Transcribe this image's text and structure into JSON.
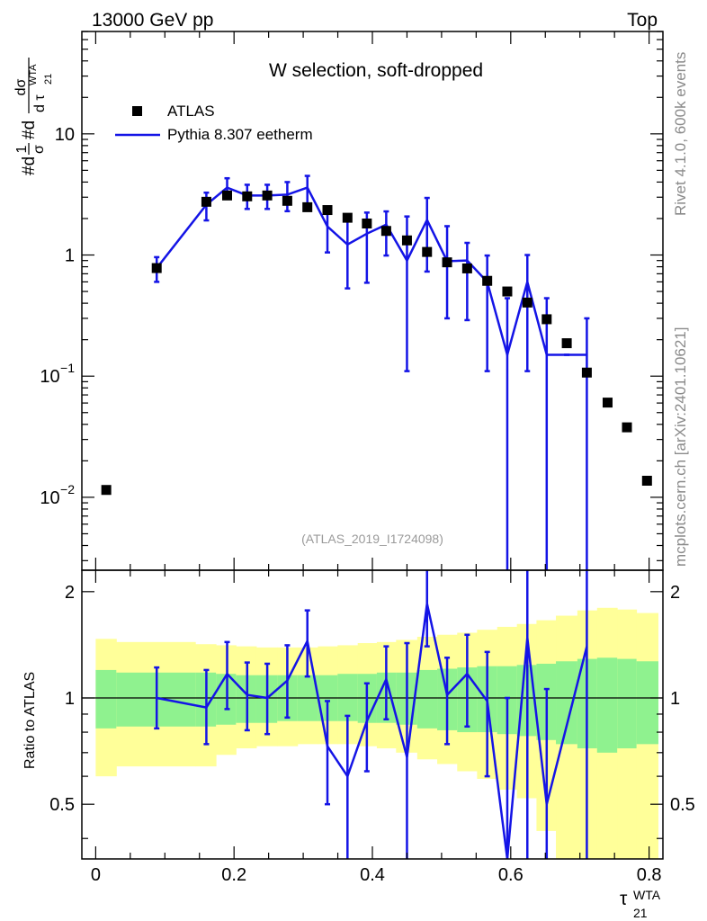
{
  "header": {
    "left": "13000 GeV pp",
    "right": "Top"
  },
  "side_labels": {
    "rivet": "Rivet 4.1.0,  600k events",
    "mcplots": "mcplots.cern.ch [arXiv:2401.10621]"
  },
  "colors": {
    "mc": "#1414e6",
    "data": "#000000",
    "band_inner": "#8ff28f",
    "band_outer": "#ffff99"
  },
  "chart_data": [
    {
      "type": "scatter",
      "panel": "main",
      "title": "W selection, soft-dropped",
      "reference": "(ATLAS_2019_I1724098)",
      "ylabel": {
        "main_part": "#d",
        "frac1_num": "1",
        "frac1_den": "σ",
        "frac2_num": "dσ",
        "frac2_den": "d τ",
        "super": "WTA",
        "sub": "21"
      },
      "yscale": "log",
      "ylim": [
        0.0025,
        70
      ],
      "xlim": [
        -0.02,
        0.82
      ],
      "yticks": [
        {
          "value": 10,
          "base": "10",
          "exp": ""
        },
        {
          "value": 1,
          "base": "1",
          "exp": ""
        },
        {
          "value": 0.1,
          "base": "10",
          "exp": "−1"
        },
        {
          "value": 0.01,
          "base": "10",
          "exp": "−2"
        }
      ],
      "legend": {
        "position": "top-left",
        "entries": [
          {
            "label": "ATLAS",
            "style": "marker"
          },
          {
            "label": "Pythia 8.307 eetherm",
            "style": "line"
          }
        ]
      },
      "series": [
        {
          "name": "ATLAS",
          "x": [
            0.0153,
            0.0882,
            0.16,
            0.19,
            0.219,
            0.248,
            0.277,
            0.306,
            0.335,
            0.364,
            0.392,
            0.42,
            0.45,
            0.479,
            0.508,
            0.537,
            0.566,
            0.595,
            0.624,
            0.652,
            0.681,
            0.71,
            0.74,
            0.768,
            0.797
          ],
          "y": [
            0.0115,
            0.78,
            2.75,
            3.1,
            3.05,
            3.1,
            2.8,
            2.48,
            2.35,
            2.03,
            1.82,
            1.58,
            1.32,
            1.06,
            0.87,
            0.775,
            0.612,
            0.5,
            0.405,
            0.295,
            0.187,
            0.107,
            0.0605,
            0.0378,
            0.0137
          ]
        },
        {
          "name": "Pythia 8.307 eetherm",
          "x": [
            0.0882,
            0.16,
            0.19,
            0.219,
            0.248,
            0.277,
            0.306,
            0.335,
            0.364,
            0.392,
            0.42,
            0.45,
            0.479,
            0.508,
            0.537,
            0.566,
            0.595,
            0.624,
            0.652,
            0.681,
            0.71
          ],
          "y": [
            0.78,
            2.6,
            3.6,
            3.1,
            3.1,
            3.15,
            3.6,
            1.72,
            1.22,
            1.5,
            1.78,
            0.9,
            1.95,
            0.89,
            0.9,
            0.6,
            0.15,
            0.6,
            0.15,
            0.15,
            0.15
          ],
          "yerr_low": [
            0.6,
            1.93,
            2.9,
            2.4,
            2.4,
            2.3,
            2.6,
            1.05,
            0.53,
            0.59,
            0.99,
            0.11,
            0.73,
            0.3,
            0.29,
            0.11,
            0.0003,
            0.11,
            0.0003,
            0.15,
            0.0003
          ],
          "yerr_high": [
            0.96,
            3.27,
            4.3,
            3.8,
            3.8,
            4.0,
            4.5,
            2.42,
            2.06,
            2.24,
            2.29,
            2.08,
            2.96,
            1.73,
            1.26,
            0.99,
            0.44,
            1.0,
            0.44,
            0.15,
            0.3
          ]
        }
      ]
    },
    {
      "type": "line",
      "panel": "ratio",
      "ylabel": "Ratio to ATLAS",
      "xlabel": "τ",
      "xlabel_super": "WTA",
      "xlabel_sub": "21",
      "xlim": [
        -0.02,
        0.82
      ],
      "ylim": [
        0.35,
        2.3
      ],
      "xticks": [
        "0",
        "0.2",
        "0.4",
        "0.6",
        "0.8"
      ],
      "yticks": [
        "2",
        "1",
        "0.5"
      ],
      "bands": {
        "bin_edges": [
          0.0,
          0.0298,
          0.1441,
          0.1739,
          0.2028,
          0.2322,
          0.2624,
          0.2918,
          0.3212,
          0.3497,
          0.3788,
          0.4064,
          0.4342,
          0.4648,
          0.4937,
          0.5226,
          0.5513,
          0.5804,
          0.6089,
          0.6372,
          0.6653,
          0.6963,
          0.7248,
          0.7539,
          0.7818,
          0.8128
        ],
        "inner_low": [
          0.82,
          0.83,
          0.83,
          0.84,
          0.85,
          0.85,
          0.86,
          0.86,
          0.86,
          0.86,
          0.85,
          0.85,
          0.84,
          0.82,
          0.81,
          0.8,
          0.8,
          0.79,
          0.78,
          0.76,
          0.74,
          0.72,
          0.7,
          0.72,
          0.74
        ],
        "inner_high": [
          1.2,
          1.18,
          1.18,
          1.17,
          1.16,
          1.16,
          1.16,
          1.16,
          1.16,
          1.17,
          1.17,
          1.18,
          1.18,
          1.2,
          1.21,
          1.22,
          1.23,
          1.23,
          1.24,
          1.25,
          1.27,
          1.29,
          1.3,
          1.29,
          1.27
        ],
        "outer_low": [
          0.6,
          0.64,
          0.64,
          0.69,
          0.72,
          0.73,
          0.73,
          0.74,
          0.74,
          0.74,
          0.73,
          0.72,
          0.7,
          0.67,
          0.65,
          0.62,
          0.59,
          0.55,
          0.52,
          0.42,
          0.3,
          0.3,
          0.3,
          0.3,
          0.3
        ],
        "outer_high": [
          1.47,
          1.44,
          1.42,
          1.41,
          1.4,
          1.39,
          1.39,
          1.39,
          1.4,
          1.41,
          1.43,
          1.44,
          1.46,
          1.49,
          1.51,
          1.53,
          1.56,
          1.59,
          1.62,
          1.66,
          1.71,
          1.77,
          1.8,
          1.78,
          1.74
        ]
      },
      "series": [
        {
          "name": "Pythia 8.307 eetherm / ATLAS",
          "x": [
            0.0882,
            0.16,
            0.19,
            0.219,
            0.248,
            0.277,
            0.306,
            0.335,
            0.364,
            0.392,
            0.42,
            0.45,
            0.479,
            0.508,
            0.537,
            0.566,
            0.595,
            0.624,
            0.652,
            0.71
          ],
          "y": [
            1.0,
            0.94,
            1.17,
            1.02,
            1.0,
            1.12,
            1.45,
            0.73,
            0.6,
            0.86,
            1.13,
            0.68,
            1.85,
            1.02,
            1.17,
            0.98,
            0.3,
            1.48,
            0.5,
            1.4
          ],
          "yerr_low": [
            0.82,
            0.74,
            0.93,
            0.81,
            0.79,
            0.88,
            1.15,
            0.5,
            0.32,
            0.62,
            0.87,
            0.3,
            1.4,
            0.74,
            0.83,
            0.6,
            0.3,
            0.3,
            0.3,
            0.3
          ],
          "yerr_high": [
            1.22,
            1.2,
            1.44,
            1.26,
            1.25,
            1.41,
            1.77,
            0.98,
            0.89,
            1.1,
            1.4,
            1.43,
            2.3,
            1.3,
            1.51,
            1.35,
            1.0,
            2.3,
            1.06,
            2.3
          ]
        }
      ]
    }
  ]
}
